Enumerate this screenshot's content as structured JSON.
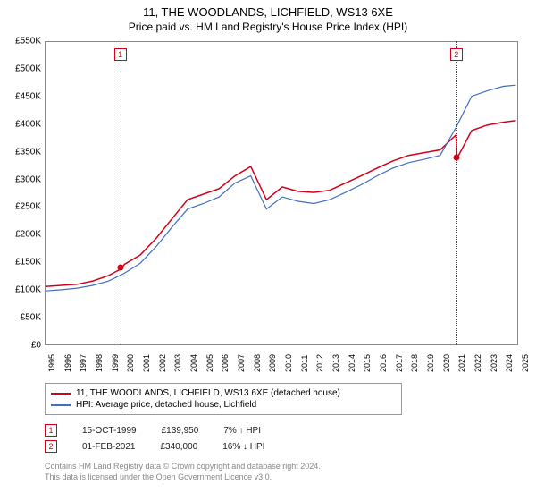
{
  "title": "11, THE WOODLANDS, LICHFIELD, WS13 6XE",
  "subtitle": "Price paid vs. HM Land Registry's House Price Index (HPI)",
  "chart": {
    "type": "line",
    "background_color": "#ffffff",
    "grid_color": "#e8e8e8",
    "border_color": "#888888",
    "xlim": [
      1995,
      2025
    ],
    "ylim": [
      0,
      550000
    ],
    "ytick_step": 50000,
    "ytick_labels": [
      "£0",
      "£50K",
      "£100K",
      "£150K",
      "£200K",
      "£250K",
      "£300K",
      "£350K",
      "£400K",
      "£450K",
      "£500K",
      "£550K"
    ],
    "xtick_labels": [
      "1995",
      "1996",
      "1997",
      "1998",
      "1999",
      "2000",
      "2001",
      "2002",
      "2003",
      "2004",
      "2005",
      "2006",
      "2007",
      "2008",
      "2009",
      "2010",
      "2011",
      "2012",
      "2013",
      "2014",
      "2015",
      "2016",
      "2017",
      "2018",
      "2019",
      "2020",
      "2021",
      "2022",
      "2023",
      "2024",
      "2025"
    ],
    "series": [
      {
        "name": "11, THE WOODLANDS, LICHFIELD, WS13 6XE (detached house)",
        "color": "#d4001a",
        "line_width": 1.5,
        "x": [
          1995,
          1996,
          1997,
          1998,
          1999,
          1999.79,
          2000,
          2001,
          2002,
          2003,
          2004,
          2005,
          2006,
          2007,
          2008,
          2008.5,
          2009,
          2010,
          2011,
          2012,
          2013,
          2014,
          2015,
          2016,
          2017,
          2018,
          2019,
          2020,
          2021,
          2021.08,
          2022,
          2023,
          2024,
          2024.8
        ],
        "y": [
          108000,
          110000,
          112000,
          118000,
          128000,
          139950,
          148000,
          165000,
          195000,
          230000,
          265000,
          275000,
          285000,
          308000,
          325000,
          295000,
          265000,
          288000,
          280000,
          278000,
          282000,
          295000,
          308000,
          322000,
          335000,
          345000,
          350000,
          355000,
          382000,
          340000,
          390000,
          400000,
          405000,
          408000
        ]
      },
      {
        "name": "HPI: Average price, detached house, Lichfield",
        "color": "#3f6fbf",
        "line_width": 1.2,
        "x": [
          1995,
          1996,
          1997,
          1998,
          1999,
          2000,
          2001,
          2002,
          2003,
          2004,
          2005,
          2006,
          2007,
          2008,
          2008.5,
          2009,
          2010,
          2011,
          2012,
          2013,
          2014,
          2015,
          2016,
          2017,
          2018,
          2019,
          2020,
          2021,
          2022,
          2023,
          2024,
          2024.8
        ],
        "y": [
          100000,
          102000,
          105000,
          110000,
          118000,
          132000,
          150000,
          180000,
          215000,
          248000,
          258000,
          270000,
          295000,
          308000,
          278000,
          248000,
          270000,
          262000,
          258000,
          265000,
          278000,
          292000,
          308000,
          322000,
          332000,
          338000,
          345000,
          395000,
          452000,
          462000,
          470000,
          472000
        ]
      }
    ],
    "markers": [
      {
        "id": "1",
        "x": 1999.79,
        "y": 139950,
        "color": "#d4001a"
      },
      {
        "id": "2",
        "x": 2021.08,
        "y": 340000,
        "color": "#d4001a"
      }
    ],
    "marker_box_color": "#d4001a",
    "vline_color": "#d4001a"
  },
  "legend": {
    "items": [
      {
        "label": "11, THE WOODLANDS, LICHFIELD, WS13 6XE (detached house)",
        "color": "#d4001a"
      },
      {
        "label": "HPI: Average price, detached house, Lichfield",
        "color": "#3f6fbf"
      }
    ]
  },
  "annotations": [
    {
      "id": "1",
      "date": "15-OCT-1999",
      "price": "£139,950",
      "delta": "7% ↑ HPI",
      "color": "#d4001a"
    },
    {
      "id": "2",
      "date": "01-FEB-2021",
      "price": "£340,000",
      "delta": "16% ↓ HPI",
      "color": "#d4001a"
    }
  ],
  "footer": {
    "line1": "Contains HM Land Registry data © Crown copyright and database right 2024.",
    "line2": "This data is licensed under the Open Government Licence v3.0."
  }
}
